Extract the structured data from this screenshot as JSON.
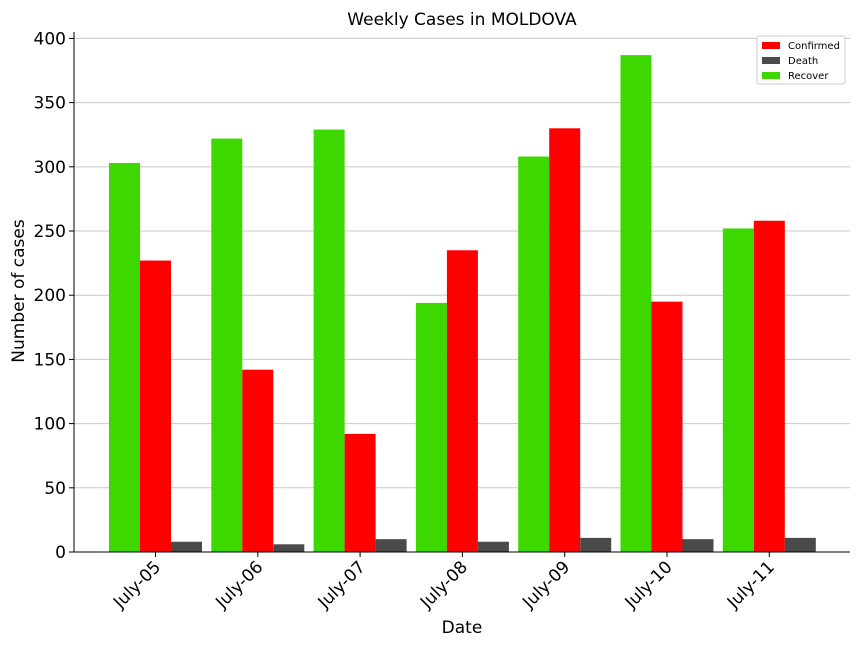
{
  "chart_data": {
    "type": "bar",
    "title": "Weekly Cases in MOLDOVA",
    "xlabel": "Date",
    "ylabel": "Number of cases",
    "categories": [
      "July-05",
      "July-06",
      "July-07",
      "July-08",
      "July-09",
      "July-10",
      "July-11"
    ],
    "ylim": [
      0,
      405
    ],
    "yticks": [
      0,
      50,
      100,
      150,
      200,
      250,
      300,
      350,
      400
    ],
    "grid": "horizontal",
    "legend_position": "top-right",
    "draw_order": [
      "Recover",
      "Confirmed",
      "Death"
    ],
    "series": [
      {
        "name": "Confirmed",
        "color": "#ff0000",
        "values": [
          227,
          142,
          92,
          235,
          330,
          195,
          258
        ]
      },
      {
        "name": "Death",
        "color": "#4a4a4a",
        "values": [
          8,
          6,
          10,
          8,
          11,
          10,
          11
        ]
      },
      {
        "name": "Recover",
        "color": "#3dd800",
        "values": [
          303,
          322,
          329,
          194,
          308,
          387,
          252
        ]
      }
    ]
  }
}
